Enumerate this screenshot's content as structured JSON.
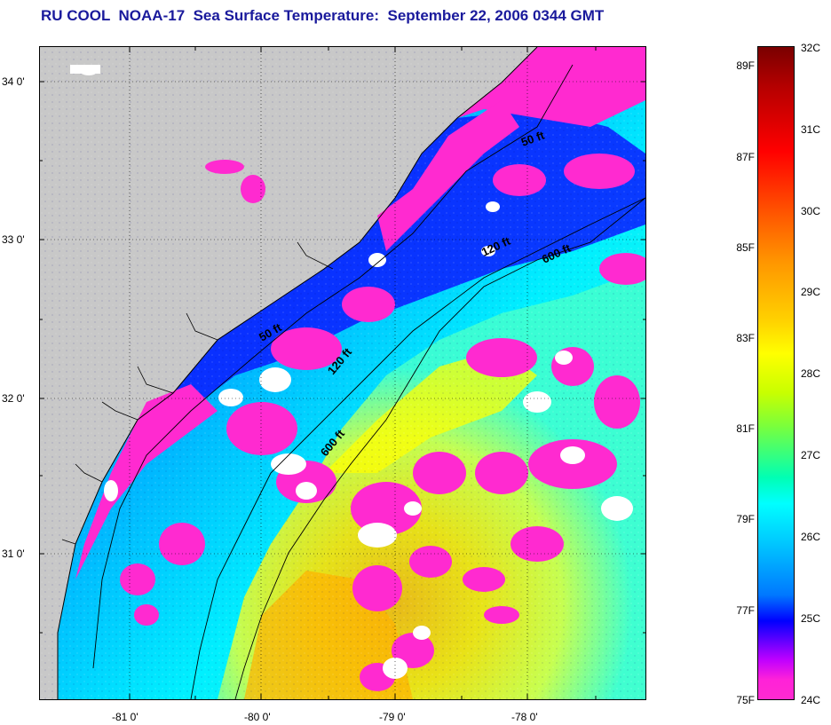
{
  "title": "RU COOL  NOAA-17  Sea Surface Temperature:  September 22, 2006 0344 GMT",
  "map": {
    "y_labels": [
      "34 0'",
      "33 0'",
      "32 0'",
      "31 0'"
    ],
    "x_labels": [
      "-81 0'",
      "-80 0'",
      "-79 0'",
      "-78 0'"
    ],
    "contour_labels": [
      "50 ft",
      "120 ft",
      "600 ft",
      "50 ft",
      "120 ft",
      "600 ft"
    ],
    "colors": {
      "land": "#c8c8c8",
      "cloud": "#ffffff",
      "cool": "#ff2ad0",
      "mid": "#00e6ff",
      "warm": "#ffff00",
      "hot": "#ffb400",
      "deep_blue": "#0a1aff"
    }
  },
  "colorbar": {
    "fahrenheit_labels": [
      "89F",
      "87F",
      "85F",
      "83F",
      "81F",
      "79F",
      "77F",
      "75F"
    ],
    "celsius_labels": [
      "32C",
      "31C",
      "30C",
      "29C",
      "28C",
      "27C",
      "26C",
      "25C",
      "24C"
    ]
  }
}
